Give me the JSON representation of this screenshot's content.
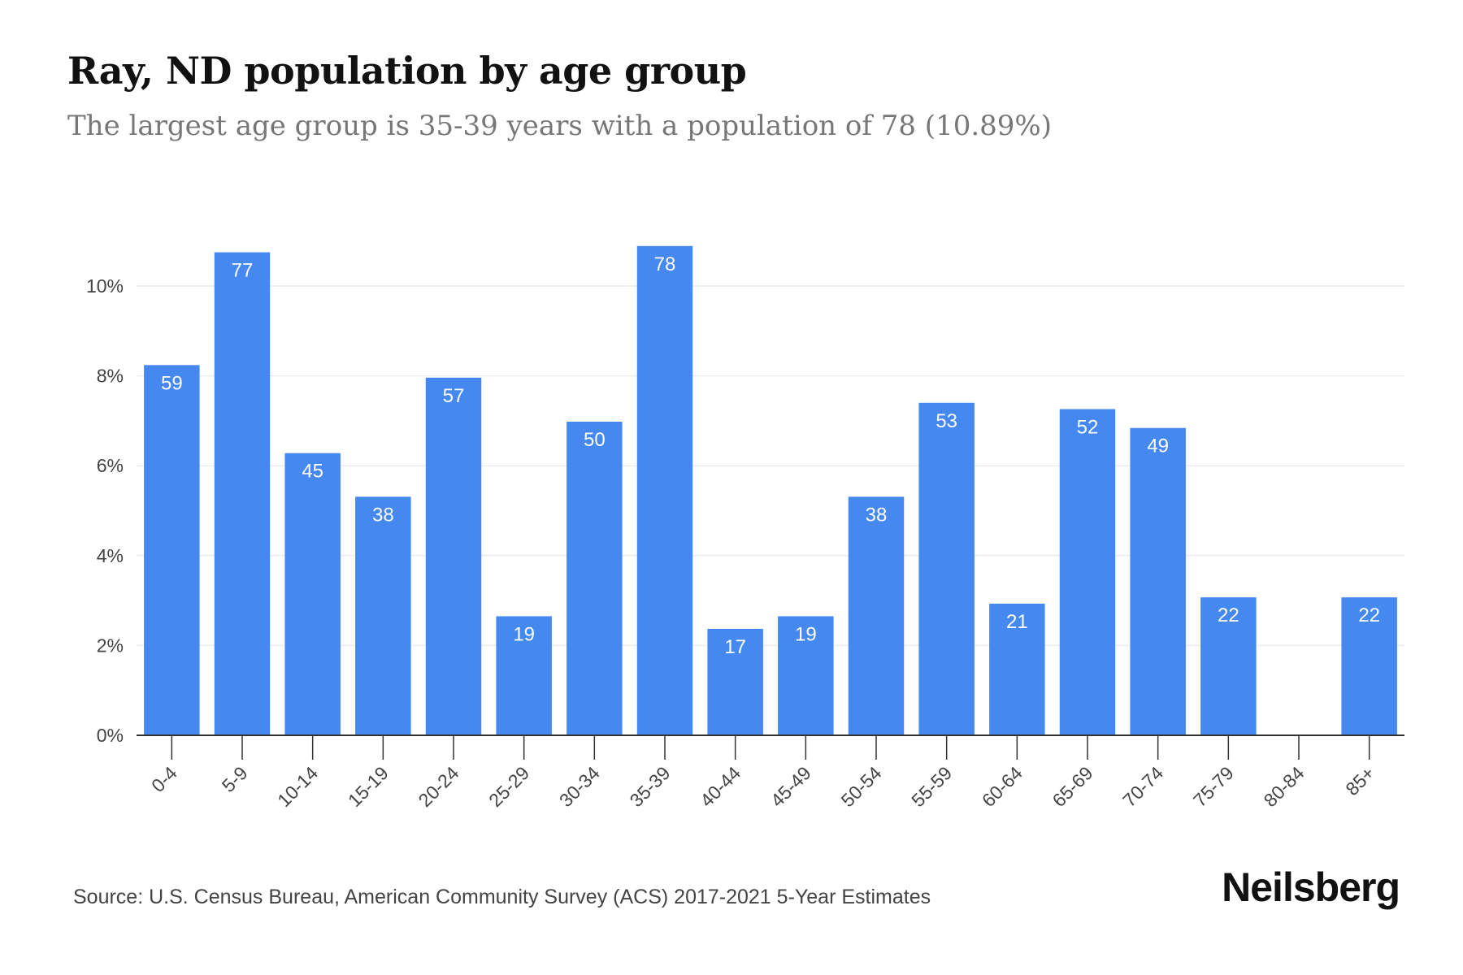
{
  "header": {
    "title": "Ray, ND population by age group",
    "subtitle": "The largest age group is 35-39 years with a population of 78 (10.89%)"
  },
  "footer": {
    "source": "Source: U.S. Census Bureau, American Community Survey (ACS) 2017-2021 5-Year Estimates",
    "brand": "Neilsberg"
  },
  "colors": {
    "bar": "#4488f0",
    "grid": "#ececec",
    "axis": "#333333"
  },
  "chart_data": {
    "type": "bar",
    "title": "Ray, ND population by age group",
    "subtitle": "The largest age group is 35-39 years with a population of 78 (10.89%)",
    "xlabel": "",
    "ylabel": "",
    "categories": [
      "0-4",
      "5-9",
      "10-14",
      "15-19",
      "20-24",
      "25-29",
      "30-34",
      "35-39",
      "40-44",
      "45-49",
      "50-54",
      "55-59",
      "60-64",
      "65-69",
      "70-74",
      "75-79",
      "80-84",
      "85+"
    ],
    "values": [
      8.24,
      10.75,
      6.28,
      5.31,
      7.96,
      2.65,
      6.98,
      10.89,
      2.37,
      2.65,
      5.31,
      7.4,
      2.93,
      7.26,
      6.84,
      3.07,
      0,
      3.07
    ],
    "data_labels": [
      "59",
      "77",
      "45",
      "38",
      "57",
      "19",
      "50",
      "78",
      "17",
      "19",
      "38",
      "53",
      "21",
      "52",
      "49",
      "22",
      "",
      "22"
    ],
    "y_ticks": [
      0,
      2,
      4,
      6,
      8,
      10
    ],
    "y_tick_labels": [
      "0%",
      "2%",
      "4%",
      "6%",
      "8%",
      "10%"
    ],
    "ylim": [
      0,
      11
    ],
    "grid": true,
    "legend": "none"
  }
}
